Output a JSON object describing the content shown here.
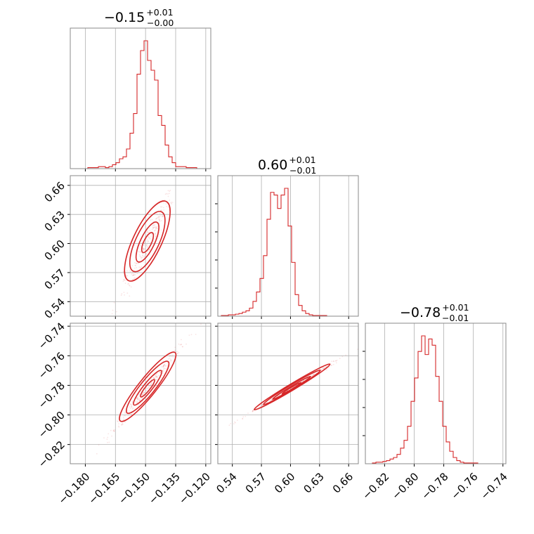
{
  "chart_data": [
    {
      "panel": "hist-0",
      "type": "histogram",
      "title": {
        "main": "−0.15",
        "sup": "+0.01",
        "sub": "−0.00"
      },
      "xlim": [
        -0.1875,
        -0.1175
      ],
      "grid": true,
      "bins": {
        "start": -0.1875,
        "width": 0.00175,
        "counts": [
          0,
          0,
          0,
          0,
          0,
          0.5,
          0.5,
          0.5,
          1,
          1,
          0.5,
          1,
          2,
          3,
          5,
          6,
          10,
          18,
          28,
          48,
          60,
          65,
          55,
          50,
          45,
          27,
          22,
          12,
          6,
          3,
          1,
          1,
          1,
          0.5,
          0.5,
          0.5,
          0,
          0,
          0,
          0
        ]
      }
    },
    {
      "panel": "hist-1",
      "type": "histogram",
      "title": {
        "main": "0.60",
        "sup": "+0.01",
        "sub": "−0.01"
      },
      "xlim": [
        0.525,
        0.67
      ],
      "grid": true,
      "bins": {
        "start": 0.525,
        "width": 0.003625,
        "counts": [
          0,
          0.5,
          0.5,
          1,
          1,
          1.5,
          2,
          3,
          4,
          6,
          11,
          18,
          28,
          45,
          72,
          92,
          90,
          80,
          90,
          95,
          67,
          40,
          16,
          8,
          4,
          2,
          1,
          0.5,
          0.5,
          0.5,
          0.5,
          0,
          0,
          0,
          0,
          0,
          0,
          0,
          0,
          0
        ]
      }
    },
    {
      "panel": "hist-2",
      "type": "histogram",
      "title": {
        "main": "−0.78",
        "sup": "+0.01",
        "sub": "−0.01"
      },
      "xlim": [
        -0.833,
        -0.738
      ],
      "grid": true,
      "bins": {
        "start": -0.833,
        "width": 0.002375,
        "counts": [
          0,
          0,
          0.5,
          1,
          1,
          1.5,
          2,
          3,
          4,
          6,
          10,
          15,
          24,
          40,
          55,
          72,
          82,
          70,
          80,
          76,
          56,
          40,
          24,
          14,
          8,
          4,
          2,
          1,
          0.5,
          0.5,
          0.5,
          0.5,
          0,
          0,
          0,
          0,
          0,
          0,
          0,
          0
        ]
      }
    },
    {
      "panel": "corr-1-0",
      "type": "contour",
      "xlim": [
        -0.1875,
        -0.1175
      ],
      "ylim": [
        0.525,
        0.67
      ],
      "grid": true,
      "mean": [
        -0.149,
        0.601
      ],
      "slope": 2.1,
      "spread_along": 0.0115,
      "spread_across": 0.0024,
      "contour_levels_sigma": [
        0.5,
        1,
        1.5,
        2
      ]
    },
    {
      "panel": "corr-2-0",
      "type": "contour",
      "xlim": [
        -0.1875,
        -0.1175
      ],
      "ylim": [
        -0.833,
        -0.738
      ],
      "grid": true,
      "mean": [
        -0.149,
        -0.782
      ],
      "slope": 1.25,
      "spread_along": 0.0115,
      "spread_across": 0.0015,
      "contour_levels_sigma": [
        0.5,
        1,
        1.5,
        2
      ]
    },
    {
      "panel": "corr-2-1",
      "type": "contour",
      "xlim": [
        0.525,
        0.67
      ],
      "ylim": [
        -0.833,
        -0.738
      ],
      "grid": true,
      "mean": [
        0.601,
        -0.782
      ],
      "slope": 0.6,
      "spread_along": 0.024,
      "spread_across": 0.0011,
      "contour_levels_sigma": [
        0.5,
        1,
        1.5,
        2
      ]
    }
  ],
  "ticks": {
    "p0": {
      "values": [
        -0.18,
        -0.165,
        -0.15,
        -0.135,
        -0.12
      ],
      "labels": [
        "−0.180",
        "−0.165",
        "−0.150",
        "−0.135",
        "−0.120"
      ]
    },
    "p1": {
      "values": [
        0.54,
        0.57,
        0.6,
        0.63,
        0.66
      ],
      "labels": [
        "0.54",
        "0.57",
        "0.60",
        "0.63",
        "0.66"
      ]
    },
    "p2": {
      "values": [
        -0.82,
        -0.8,
        -0.78,
        -0.76,
        -0.74
      ],
      "labels": [
        "−0.82",
        "−0.80",
        "−0.78",
        "−0.76",
        "−0.74"
      ]
    }
  },
  "colors": {
    "series": "#d62728",
    "frame": "#888888",
    "grid": "#b0b0b0"
  }
}
